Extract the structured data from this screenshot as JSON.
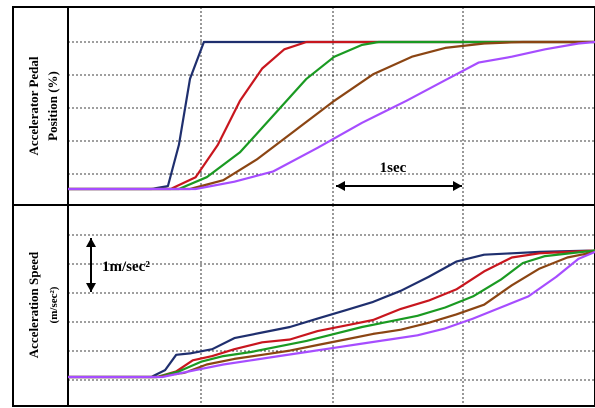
{
  "chart_data": [
    {
      "type": "line",
      "ylabel": [
        "Accelerator Pedal",
        "Position (%)"
      ],
      "annotation": "1sec",
      "series": [
        {
          "color": "#1f2f6e",
          "points": [
            [
              0,
              0
            ],
            [
              1.5,
              0
            ],
            [
              1.8,
              0.02
            ],
            [
              2.0,
              0.3
            ],
            [
              2.2,
              0.75
            ],
            [
              2.45,
              1.0
            ],
            [
              9.5,
              1.0
            ]
          ]
        },
        {
          "color": "#c8161e",
          "points": [
            [
              0,
              0
            ],
            [
              1.85,
              0
            ],
            [
              2.3,
              0.08
            ],
            [
              2.7,
              0.3
            ],
            [
              3.1,
              0.6
            ],
            [
              3.5,
              0.82
            ],
            [
              3.9,
              0.95
            ],
            [
              4.3,
              1.0
            ],
            [
              9.5,
              1.0
            ]
          ]
        },
        {
          "color": "#1a9a22",
          "points": [
            [
              0,
              0
            ],
            [
              2.0,
              0
            ],
            [
              2.5,
              0.08
            ],
            [
              3.1,
              0.25
            ],
            [
              3.7,
              0.5
            ],
            [
              4.3,
              0.75
            ],
            [
              4.8,
              0.9
            ],
            [
              5.3,
              0.98
            ],
            [
              5.6,
              1.0
            ],
            [
              9.5,
              1.0
            ]
          ]
        },
        {
          "color": "#8b4513",
          "points": [
            [
              0,
              0
            ],
            [
              2.2,
              0
            ],
            [
              2.8,
              0.06
            ],
            [
              3.4,
              0.2
            ],
            [
              4.1,
              0.4
            ],
            [
              4.8,
              0.6
            ],
            [
              5.5,
              0.78
            ],
            [
              6.2,
              0.9
            ],
            [
              6.8,
              0.96
            ],
            [
              7.5,
              0.99
            ],
            [
              8.2,
              1.0
            ],
            [
              9.5,
              1.0
            ]
          ]
        },
        {
          "color": "#a64dff",
          "points": [
            [
              0,
              0
            ],
            [
              2.3,
              0
            ],
            [
              3.0,
              0.05
            ],
            [
              3.7,
              0.12
            ],
            [
              4.5,
              0.28
            ],
            [
              5.3,
              0.45
            ],
            [
              6.1,
              0.6
            ],
            [
              6.8,
              0.74
            ],
            [
              7.4,
              0.86
            ],
            [
              8.0,
              0.9
            ],
            [
              8.6,
              0.95
            ],
            [
              9.2,
              0.99
            ],
            [
              9.5,
              1.0
            ]
          ]
        }
      ]
    },
    {
      "type": "line",
      "ylabel": [
        "Acceleration Speed",
        "(m/sec²)"
      ],
      "annotation": "1m/sec²",
      "series": [
        {
          "color": "#1f2f6e",
          "points": [
            [
              0,
              0
            ],
            [
              1.5,
              0
            ],
            [
              1.75,
              0.05
            ],
            [
              1.95,
              0.16
            ],
            [
              2.2,
              0.17
            ],
            [
              2.6,
              0.2
            ],
            [
              3.0,
              0.28
            ],
            [
              3.5,
              0.32
            ],
            [
              4.0,
              0.36
            ],
            [
              4.5,
              0.42
            ],
            [
              5.0,
              0.48
            ],
            [
              5.5,
              0.54
            ],
            [
              6.0,
              0.62
            ],
            [
              6.5,
              0.72
            ],
            [
              7.0,
              0.83
            ],
            [
              7.5,
              0.88
            ],
            [
              8.0,
              0.89
            ],
            [
              8.5,
              0.9
            ],
            [
              9.5,
              0.91
            ]
          ]
        },
        {
          "color": "#c8161e",
          "points": [
            [
              0,
              0
            ],
            [
              1.6,
              0
            ],
            [
              1.95,
              0.04
            ],
            [
              2.25,
              0.12
            ],
            [
              2.6,
              0.15
            ],
            [
              3.0,
              0.2
            ],
            [
              3.5,
              0.25
            ],
            [
              4.0,
              0.27
            ],
            [
              4.5,
              0.33
            ],
            [
              5.0,
              0.37
            ],
            [
              5.5,
              0.41
            ],
            [
              6.0,
              0.49
            ],
            [
              6.5,
              0.55
            ],
            [
              7.0,
              0.63
            ],
            [
              7.5,
              0.76
            ],
            [
              8.0,
              0.86
            ],
            [
              8.5,
              0.89
            ],
            [
              9.5,
              0.91
            ]
          ]
        },
        {
          "color": "#1a9a22",
          "points": [
            [
              0,
              0
            ],
            [
              1.6,
              0
            ],
            [
              2.0,
              0.04
            ],
            [
              2.4,
              0.11
            ],
            [
              2.8,
              0.15
            ],
            [
              3.3,
              0.18
            ],
            [
              3.8,
              0.22
            ],
            [
              4.3,
              0.26
            ],
            [
              4.8,
              0.31
            ],
            [
              5.3,
              0.36
            ],
            [
              5.8,
              0.4
            ],
            [
              6.3,
              0.44
            ],
            [
              6.8,
              0.5
            ],
            [
              7.3,
              0.58
            ],
            [
              7.8,
              0.7
            ],
            [
              8.2,
              0.82
            ],
            [
              8.6,
              0.87
            ],
            [
              9.5,
              0.91
            ]
          ]
        },
        {
          "color": "#8b4513",
          "points": [
            [
              0,
              0
            ],
            [
              1.6,
              0
            ],
            [
              2.1,
              0.03
            ],
            [
              2.5,
              0.09
            ],
            [
              3.0,
              0.13
            ],
            [
              3.5,
              0.16
            ],
            [
              4.0,
              0.19
            ],
            [
              4.5,
              0.23
            ],
            [
              5.0,
              0.27
            ],
            [
              5.5,
              0.31
            ],
            [
              6.0,
              0.34
            ],
            [
              6.5,
              0.39
            ],
            [
              7.0,
              0.45
            ],
            [
              7.5,
              0.52
            ],
            [
              8.0,
              0.66
            ],
            [
              8.5,
              0.78
            ],
            [
              9.0,
              0.86
            ],
            [
              9.5,
              0.9
            ]
          ]
        },
        {
          "color": "#a64dff",
          "points": [
            [
              0,
              0
            ],
            [
              1.7,
              0
            ],
            [
              2.3,
              0.05
            ],
            [
              2.8,
              0.09
            ],
            [
              3.3,
              0.12
            ],
            [
              3.8,
              0.15
            ],
            [
              4.3,
              0.18
            ],
            [
              4.8,
              0.21
            ],
            [
              5.3,
              0.24
            ],
            [
              5.8,
              0.27
            ],
            [
              6.3,
              0.3
            ],
            [
              6.8,
              0.35
            ],
            [
              7.3,
              0.42
            ],
            [
              7.8,
              0.5
            ],
            [
              8.3,
              0.58
            ],
            [
              8.8,
              0.72
            ],
            [
              9.2,
              0.85
            ],
            [
              9.5,
              0.9
            ]
          ]
        }
      ]
    }
  ]
}
